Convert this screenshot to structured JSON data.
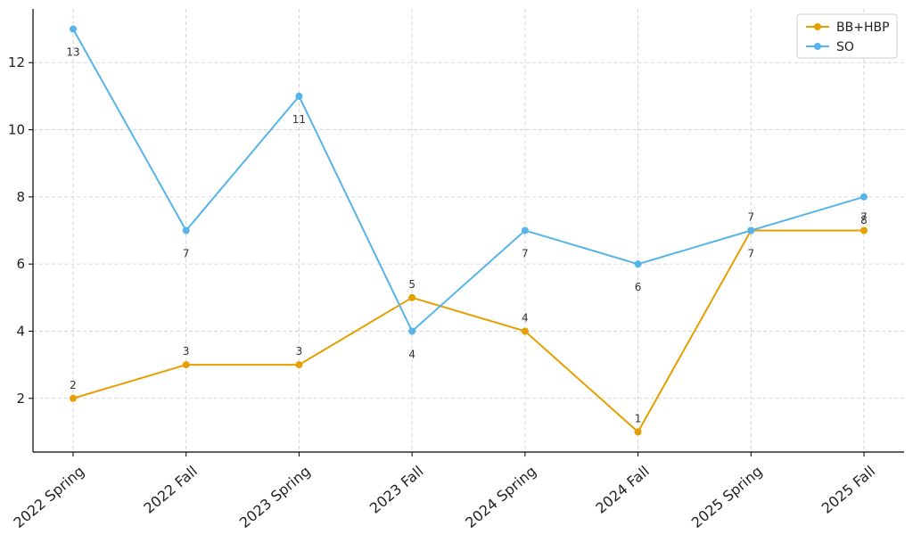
{
  "chart_data": {
    "type": "line",
    "categories": [
      "2022 Spring",
      "2022 Fall",
      "2023 Spring",
      "2023 Fall",
      "2024 Spring",
      "2024 Fall",
      "2025 Spring",
      "2025 Fall"
    ],
    "series": [
      {
        "name": "BB+HBP",
        "color": "#E69F00",
        "values": [
          2,
          3,
          3,
          5,
          4,
          1,
          7,
          7
        ],
        "label_position": "above"
      },
      {
        "name": "SO",
        "color": "#56B4E9",
        "values": [
          13,
          7,
          11,
          4,
          7,
          6,
          7,
          8
        ],
        "label_position": "below"
      }
    ],
    "data_labels": {
      "BB+HBP": [
        "2",
        "3",
        "3",
        "5",
        "4",
        "1",
        "7",
        "7"
      ],
      "SO": [
        "13",
        "7",
        "11",
        "4",
        "7",
        "6",
        "7",
        "8"
      ]
    },
    "yticks": [
      2,
      4,
      6,
      8,
      10,
      12
    ],
    "ylim": [
      0.4,
      13.6
    ],
    "title": "",
    "xlabel": "",
    "ylabel": "",
    "grid": true,
    "legend_position": "top-right"
  }
}
